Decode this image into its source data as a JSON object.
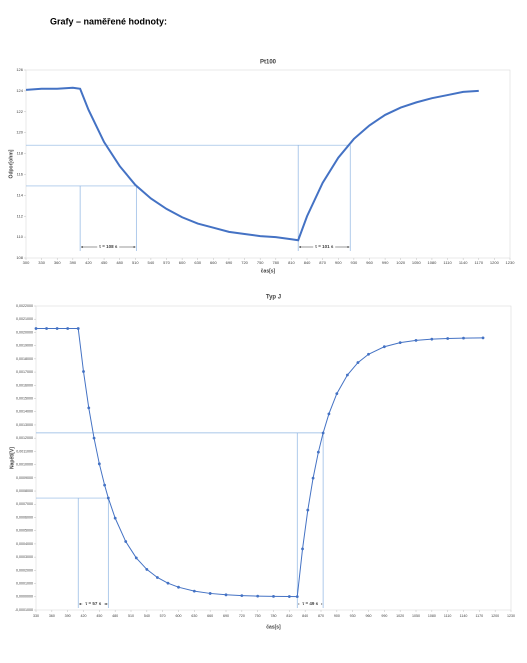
{
  "heading": "Grafy – naměřené hodnoty:",
  "chart_data": [
    {
      "type": "line",
      "title": "Pt100",
      "x_label": "čas[s]",
      "y_label": "Odpor[ohm]",
      "color": "#4472c4",
      "x": [
        300,
        330,
        360,
        390,
        404,
        420,
        450,
        480,
        510,
        540,
        570,
        600,
        630,
        660,
        690,
        720,
        750,
        780,
        810,
        823,
        840,
        870,
        900,
        930,
        960,
        990,
        1020,
        1050,
        1080,
        1110,
        1140,
        1170
      ],
      "values": [
        124.1,
        124.2,
        124.2,
        124.3,
        124.2,
        122.2,
        119.1,
        116.8,
        115.0,
        113.7,
        112.7,
        111.9,
        111.3,
        110.9,
        110.5,
        110.3,
        110.1,
        110.0,
        109.8,
        109.7,
        112.0,
        115.2,
        117.6,
        119.4,
        120.7,
        121.7,
        122.4,
        122.9,
        123.3,
        123.6,
        123.9,
        124.0
      ],
      "xlim": [
        300,
        1230
      ],
      "xticks": [
        300,
        330,
        360,
        390,
        420,
        450,
        480,
        510,
        540,
        570,
        600,
        630,
        660,
        690,
        720,
        750,
        780,
        810,
        840,
        870,
        900,
        930,
        960,
        990,
        1020,
        1050,
        1080,
        1110,
        1140,
        1170,
        1200,
        1230
      ],
      "ylim": [
        108,
        126
      ],
      "yticks": [
        108,
        110,
        112,
        114,
        116,
        118,
        120,
        122,
        124,
        126
      ],
      "markers": false,
      "annotations": [
        {
          "x_start": 404,
          "x_end": 512,
          "y": 114.9,
          "label": "τ = 108 s"
        },
        {
          "x_start": 823,
          "x_end": 923,
          "y": 118.8,
          "label": "τ = 101 s"
        }
      ]
    },
    {
      "type": "line",
      "title": "Typ J",
      "x_label": "čas[s]",
      "y_label": "Napětí[V]",
      "color": "#4472c4",
      "x": [
        330,
        350,
        370,
        390,
        410,
        420,
        430,
        440,
        450,
        460,
        467,
        480,
        500,
        520,
        540,
        560,
        580,
        600,
        630,
        660,
        690,
        720,
        750,
        780,
        810,
        825,
        835,
        845,
        855,
        865,
        874,
        885,
        900,
        920,
        940,
        960,
        990,
        1020,
        1050,
        1080,
        1110,
        1140,
        1177
      ],
      "values": [
        0.00203,
        0.00203,
        0.00203,
        0.00203,
        0.00203,
        0.001704,
        0.001429,
        0.0012,
        0.001006,
        0.000845,
        0.000747,
        0.000595,
        0.000418,
        0.000294,
        0.000207,
        0.000146,
        0.000103,
        7.25e-05,
        4.28e-05,
        2.53e-05,
        1.49e-05,
        8.8e-06,
        5.2e-06,
        3.1e-06,
        1.8e-06,
        1e-06,
        0.000362,
        0.000656,
        0.000898,
        0.001094,
        0.001239,
        0.001384,
        0.001537,
        0.001678,
        0.001772,
        0.001835,
        0.001892,
        0.001923,
        0.00194,
        0.001949,
        0.001954,
        0.001957,
        0.001959
      ],
      "xlim": [
        330,
        1230
      ],
      "xticks": [
        330,
        360,
        390,
        420,
        450,
        480,
        510,
        540,
        570,
        600,
        630,
        660,
        690,
        720,
        750,
        780,
        810,
        840,
        870,
        900,
        930,
        960,
        990,
        1020,
        1050,
        1080,
        1110,
        1140,
        1170,
        1200,
        1230
      ],
      "ylim": [
        -0.0001,
        0.0022
      ],
      "yticks": [
        {
          "value": -0.0001,
          "label": "-0,0001000"
        },
        {
          "value": 0,
          "label": "0,0000000"
        },
        {
          "value": 0.0001,
          "label": "0,0001000"
        },
        {
          "value": 0.0002,
          "label": "0,0002000"
        },
        {
          "value": 0.0003,
          "label": "0,0003000"
        },
        {
          "value": 0.0004,
          "label": "0,0004000"
        },
        {
          "value": 0.0005,
          "label": "0,0005000"
        },
        {
          "value": 0.0006,
          "label": "0,0006000"
        },
        {
          "value": 0.0007,
          "label": "0,0007000"
        },
        {
          "value": 0.0008,
          "label": "0,0008000"
        },
        {
          "value": 0.0009,
          "label": "0,0009000"
        },
        {
          "value": 0.001,
          "label": "0,0010000"
        },
        {
          "value": 0.0011,
          "label": "0,0011000"
        },
        {
          "value": 0.0012,
          "label": "0,0012000"
        },
        {
          "value": 0.0013,
          "label": "0,0013000"
        },
        {
          "value": 0.0014,
          "label": "0,0014000"
        },
        {
          "value": 0.0015,
          "label": "0,0015000"
        },
        {
          "value": 0.0016,
          "label": "0,0016000"
        },
        {
          "value": 0.0017,
          "label": "0,0017000"
        },
        {
          "value": 0.0018,
          "label": "0,0018000"
        },
        {
          "value": 0.0019,
          "label": "0,0019000"
        },
        {
          "value": 0.002,
          "label": "0,0020000"
        },
        {
          "value": 0.0021,
          "label": "0,0021000"
        },
        {
          "value": 0.0022,
          "label": "0,0022000"
        }
      ],
      "markers": true,
      "annotations": [
        {
          "x_start": 410,
          "x_end": 467,
          "y": 0.000747,
          "label": "τ = 57 s"
        },
        {
          "x_start": 825,
          "x_end": 874,
          "y": 0.00124,
          "label": "τ = 49 s"
        }
      ]
    }
  ]
}
